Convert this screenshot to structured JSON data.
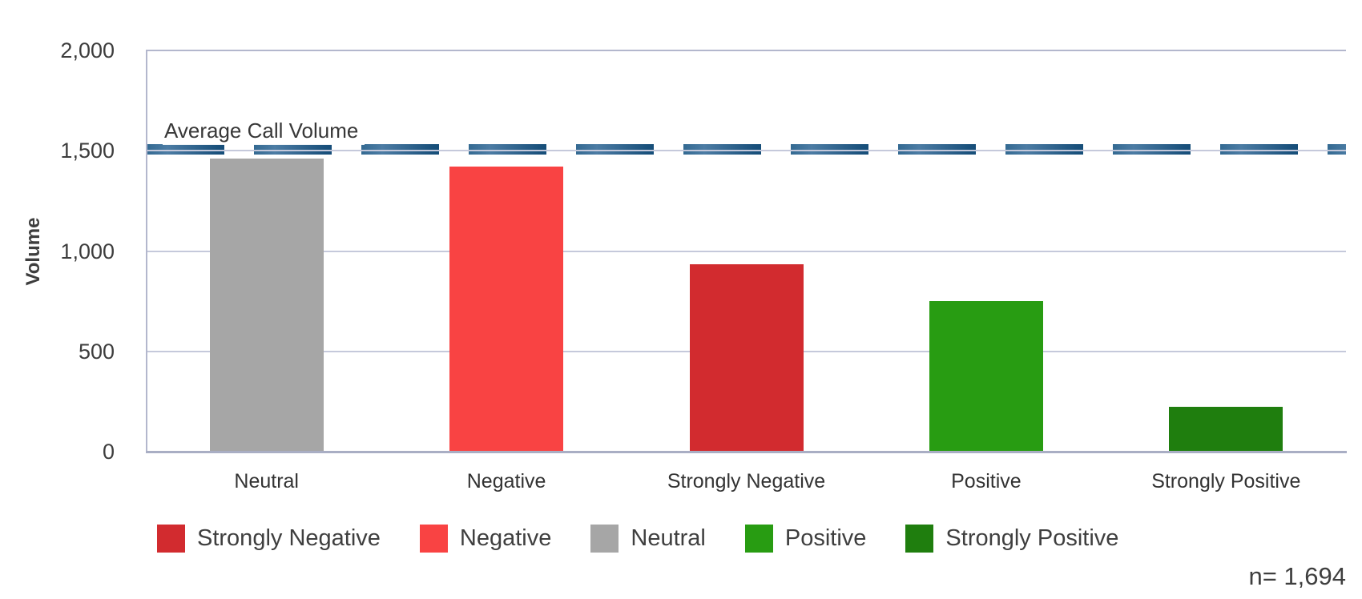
{
  "accent_colors": {
    "strongly_negative": "#d22b2f",
    "negative": "#f94343",
    "neutral": "#a6a6a6",
    "positive": "#289c12",
    "strongly_positive": "#1f7e0e",
    "average_line_blue": "#1b537e",
    "gridline": "#c5c9db",
    "axis_border": "#b3b7cd"
  },
  "chart_data": {
    "type": "bar",
    "title": "",
    "xlabel": "",
    "ylabel": "Volume",
    "categories": [
      "Neutral",
      "Negative",
      "Strongly Negative",
      "Positive",
      "Strongly Positive"
    ],
    "values": [
      1460,
      1420,
      935,
      750,
      225
    ],
    "bar_colors": [
      "#a6a6a6",
      "#f94343",
      "#d22b2f",
      "#289c12",
      "#1f7e0e"
    ],
    "ylim": [
      0,
      2000
    ],
    "yticks": [
      0,
      500,
      1000,
      1500,
      2000
    ],
    "ytick_labels": [
      "0",
      "500",
      "1,000",
      "1,500",
      "2,000"
    ],
    "grid": true,
    "reference_line": {
      "label": "Average Call Volume",
      "value": 1500,
      "style": "dashed",
      "color": "#1b537e"
    },
    "legend_position": "bottom",
    "legend": [
      {
        "label": "Strongly Negative",
        "color": "#d22b2f"
      },
      {
        "label": "Negative",
        "color": "#f94343"
      },
      {
        "label": "Neutral",
        "color": "#a6a6a6"
      },
      {
        "label": "Positive",
        "color": "#289c12"
      },
      {
        "label": "Strongly Positive",
        "color": "#1f7e0e"
      }
    ],
    "annotation": "n= 1,694"
  }
}
